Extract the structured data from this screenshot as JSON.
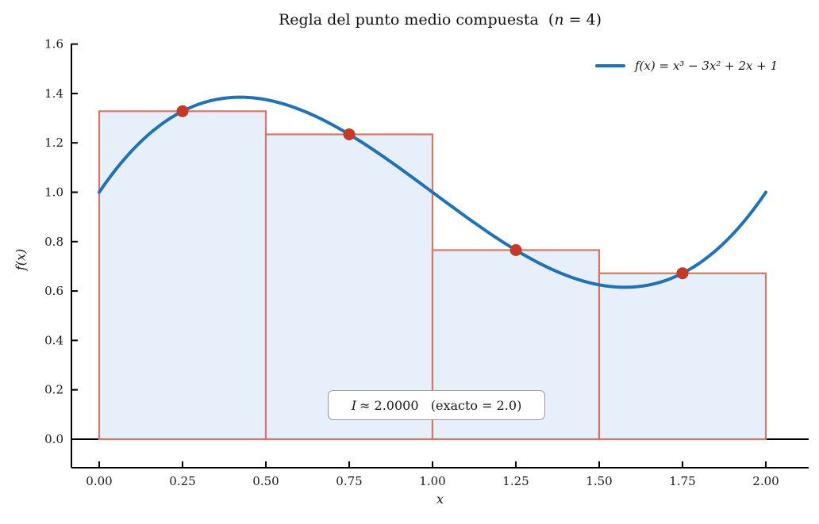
{
  "title": {
    "text": "Regla del punto medio compuesta  ",
    "math_prefix": "(",
    "math_var": "n",
    "math_suffix": " = 4)"
  },
  "axes": {
    "xlabel": "x",
    "ylabel": "f(x)"
  },
  "legend": {
    "label": "f(x) = x³ − 3x² + 2x + 1",
    "position": "upper right",
    "frame": false
  },
  "annotation": {
    "symbol": "I",
    "value_text": "≈ 2.0000   (exacto = 2.0)"
  },
  "chart_data": {
    "type": "line",
    "title": "Regla del punto medio compuesta (n = 4)",
    "xlabel": "x",
    "ylabel": "f(x)",
    "xlim": [
      -0.083,
      2.129
    ],
    "ylim": [
      -0.116,
      1.6
    ],
    "xticks": [
      "0.00",
      "0.25",
      "0.50",
      "0.75",
      "1.00",
      "1.25",
      "1.50",
      "1.75",
      "2.00"
    ],
    "yticks": [
      "0.0",
      "0.2",
      "0.4",
      "0.6",
      "0.8",
      "1.0",
      "1.2",
      "1.4",
      "1.6"
    ],
    "grid": false,
    "function": {
      "label": "f(x) = x³ − 3x² + 2x + 1",
      "coefficients_desc_power": [
        1,
        -3,
        2,
        1
      ],
      "domain": [
        0,
        2
      ],
      "endpoints": [
        {
          "x": 0,
          "y": 1.0
        },
        {
          "x": 2,
          "y": 1.0
        }
      ]
    },
    "midpoint_rule": {
      "n": 4,
      "a": 0.0,
      "b": 2.0,
      "subinterval_width": 0.5,
      "rectangles": [
        {
          "x0": 0.0,
          "x1": 0.5,
          "midpoint": 0.25,
          "height": 1.328125
        },
        {
          "x0": 0.5,
          "x1": 1.0,
          "midpoint": 0.75,
          "height": 1.234375
        },
        {
          "x0": 1.0,
          "x1": 1.5,
          "midpoint": 1.25,
          "height": 0.765625
        },
        {
          "x0": 1.5,
          "x1": 2.0,
          "midpoint": 1.75,
          "height": 0.671875
        }
      ],
      "approximation": 2.0,
      "exact": 2.0
    },
    "colors": {
      "curve": "#2171b5",
      "bar_fill": "#e7f0fa",
      "bar_edge": "#d4766b",
      "midpoint_dot": "#c23a28",
      "zero_line": "#000000",
      "spine": "#000000",
      "annotation_border": "#999999"
    }
  }
}
